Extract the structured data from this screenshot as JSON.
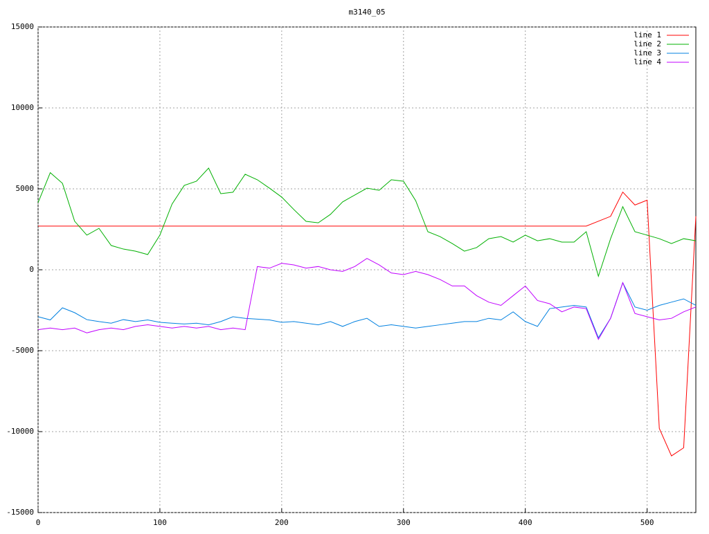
{
  "chart_data": {
    "type": "line",
    "title": "m3140_05",
    "x": [
      0,
      10,
      20,
      30,
      40,
      50,
      60,
      70,
      80,
      90,
      100,
      110,
      120,
      130,
      140,
      150,
      160,
      170,
      180,
      190,
      200,
      210,
      220,
      230,
      240,
      250,
      260,
      270,
      280,
      290,
      300,
      310,
      320,
      330,
      340,
      350,
      360,
      370,
      380,
      390,
      400,
      410,
      420,
      430,
      440,
      450,
      460,
      470,
      480,
      490,
      500,
      510,
      520,
      530,
      540
    ],
    "xlim": [
      0,
      540
    ],
    "xticks": [
      0,
      100,
      200,
      300,
      400,
      500
    ],
    "ylim": [
      -15000,
      15000
    ],
    "yticks": [
      -15000,
      -10000,
      -5000,
      0,
      5000,
      10000,
      15000
    ],
    "grid": true,
    "legend": "top-right",
    "series": [
      {
        "name": "line 1",
        "color": "#ff0000",
        "values": [
          2700,
          2700,
          2700,
          2700,
          2700,
          2700,
          2700,
          2700,
          2700,
          2700,
          2700,
          2700,
          2700,
          2700,
          2700,
          2700,
          2700,
          2700,
          2700,
          2700,
          2700,
          2700,
          2700,
          2700,
          2700,
          2700,
          2700,
          2700,
          2700,
          2700,
          2700,
          2700,
          2700,
          2700,
          2700,
          2700,
          2700,
          2700,
          2700,
          2700,
          2700,
          2700,
          2700,
          2700,
          2700,
          2700,
          3000,
          3300,
          4800,
          4000,
          4300,
          -9800,
          -11500,
          -11000,
          3300
        ]
      },
      {
        "name": "line 2",
        "color": "#00b000",
        "values": [
          4150,
          6000,
          5340,
          3000,
          2140,
          2560,
          1500,
          1280,
          1150,
          940,
          2140,
          4060,
          5210,
          5470,
          6280,
          4700,
          4790,
          5900,
          5560,
          5040,
          4490,
          3720,
          2990,
          2900,
          3420,
          4190,
          4620,
          5040,
          4910,
          5560,
          5470,
          4270,
          2350,
          2050,
          1620,
          1150,
          1370,
          1920,
          2050,
          1710,
          2140,
          1790,
          1920,
          1710,
          1710,
          2350,
          -400,
          1920,
          3900,
          2350,
          2140,
          1920,
          1620,
          1920,
          1790
        ]
      },
      {
        "name": "line 3",
        "color": "#0080e0",
        "values": [
          -2900,
          -3100,
          -2350,
          -2650,
          -3080,
          -3200,
          -3300,
          -3080,
          -3200,
          -3100,
          -3250,
          -3300,
          -3350,
          -3300,
          -3400,
          -3200,
          -2900,
          -3000,
          -3050,
          -3100,
          -3250,
          -3200,
          -3300,
          -3400,
          -3200,
          -3500,
          -3200,
          -3000,
          -3500,
          -3400,
          -3500,
          -3600,
          -3500,
          -3400,
          -3300,
          -3200,
          -3200,
          -3000,
          -3100,
          -2600,
          -3200,
          -3500,
          -2400,
          -2300,
          -2200,
          -2300,
          -4200,
          -3000,
          -800,
          -2300,
          -2500,
          -2200,
          -2000,
          -1800,
          -2200
        ]
      },
      {
        "name": "line 4",
        "color": "#c000ff",
        "values": [
          -3700,
          -3600,
          -3700,
          -3600,
          -3900,
          -3700,
          -3600,
          -3700,
          -3500,
          -3400,
          -3500,
          -3600,
          -3500,
          -3600,
          -3500,
          -3700,
          -3600,
          -3700,
          200,
          100,
          400,
          300,
          100,
          200,
          0,
          -100,
          200,
          700,
          300,
          -200,
          -300,
          -100,
          -300,
          -600,
          -1000,
          -1000,
          -1600,
          -2000,
          -2200,
          -1600,
          -1000,
          -1900,
          -2100,
          -2600,
          -2300,
          -2400,
          -4300,
          -3000,
          -800,
          -2700,
          -2900,
          -3100,
          -3000,
          -2600,
          -2300
        ]
      }
    ]
  }
}
